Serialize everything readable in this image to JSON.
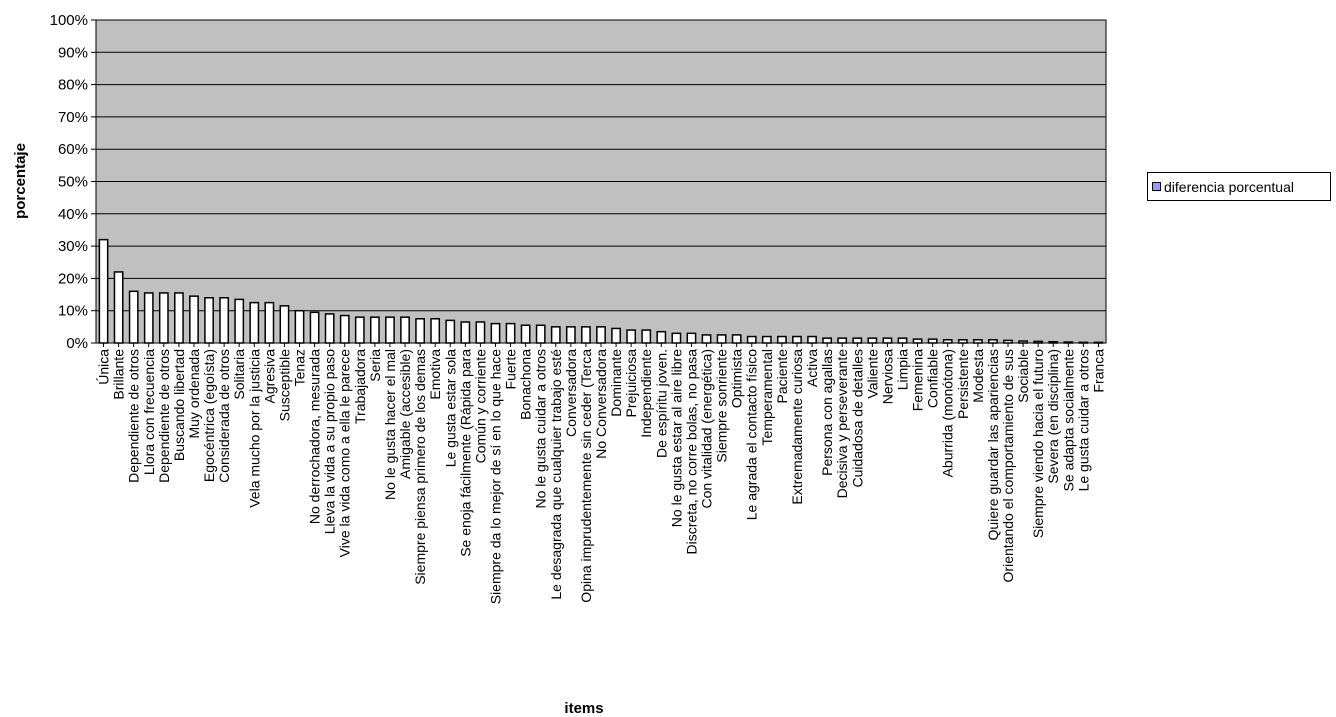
{
  "chart_data": {
    "type": "bar",
    "xlabel": "items",
    "ylabel": "porcentaje",
    "ylim": [
      0,
      100
    ],
    "y_ticks": [
      "0%",
      "10%",
      "20%",
      "30%",
      "40%",
      "50%",
      "60%",
      "70%",
      "80%",
      "90%",
      "100%"
    ],
    "grid": true,
    "legend_position": "right",
    "plot_background": "#c0c0c0",
    "bar_color": "#ffffff",
    "legend_swatch_color": "#9999ff",
    "categories": [
      "Única",
      "Brillante",
      "Dependiente de otros",
      "Llora con frecuencia",
      "Dependiente de otros",
      "Buscando libertad",
      "Muy ordenada",
      "Egocéntrica (egoísta)",
      "Considerada de otros",
      "Solitaria",
      "Vela mucho por la justicia",
      "Agresiva",
      "Susceptible",
      "Tenaz",
      "No derrochadora, mesurada",
      "Lleva la vida a su propio paso",
      "Vive la vida como a ella le parece",
      "Trabajadora",
      "Seria",
      "No le gusta hacer el mal",
      "Amigable (accesible)",
      "Siempre piensa primero de los demas",
      "Emotiva",
      "Le gusta estar sola",
      "Se enoja fácilmente (Rápida para",
      "Común y corriente",
      "Siempre da lo mejor de sí en lo que hace",
      "Fuerte",
      "Bonachona",
      "No le gusta cuidar a otros",
      "Le desagrada que cualquier trabajo esté",
      "Conversadora",
      "Opina imprudentemente sin ceder (Terca",
      "No Conversadora",
      "Dominante",
      "Prejuiciosa",
      "Independiente",
      "De espíritu joven.",
      "No le gusta estar al aire libre",
      "Discreta, no corre bolas, no pasa",
      "Con vitalidad (energética)",
      "Siempre sonriente",
      "Optimista",
      "Le agrada el contacto físico",
      "Temperamental",
      "Paciente",
      "Extremadamente curiosa",
      "Activa",
      "Persona con agallas",
      "Decisiva y perseverante",
      "Cuidadosa de detalles",
      "Valiente",
      "Nerviosa",
      "Limpia",
      "Femenina",
      "Confiable",
      "Aburrida (monótona)",
      "Persistente",
      "Modesta",
      "Quiere guardar las apariencias",
      "Orientando el comportamiento de sus",
      "Sociable",
      "Siempre viendo hacia el futuro",
      "Severa (en disciplina)",
      "Se adapta socialmente",
      "Le gusta cuidar a otros",
      "Franca"
    ],
    "series": [
      {
        "name": "diferencia porcentual",
        "values": [
          32,
          22,
          16,
          15.5,
          15.5,
          15.5,
          14.5,
          14,
          14,
          13.5,
          12.5,
          12.5,
          11.5,
          10,
          9.5,
          9,
          8.5,
          8,
          8,
          8,
          8,
          7.5,
          7.5,
          7,
          6.5,
          6.5,
          6,
          6,
          5.5,
          5.5,
          5,
          5,
          5,
          5,
          4.5,
          4,
          4,
          3.5,
          3,
          3,
          2.5,
          2.5,
          2.5,
          2,
          2,
          2,
          2,
          2,
          1.5,
          1.5,
          1.5,
          1.5,
          1.5,
          1.5,
          1.2,
          1.2,
          1,
          1,
          1,
          1,
          0.8,
          0.6,
          0.5,
          0.4,
          0.3,
          0.2,
          0.2
        ]
      }
    ]
  }
}
